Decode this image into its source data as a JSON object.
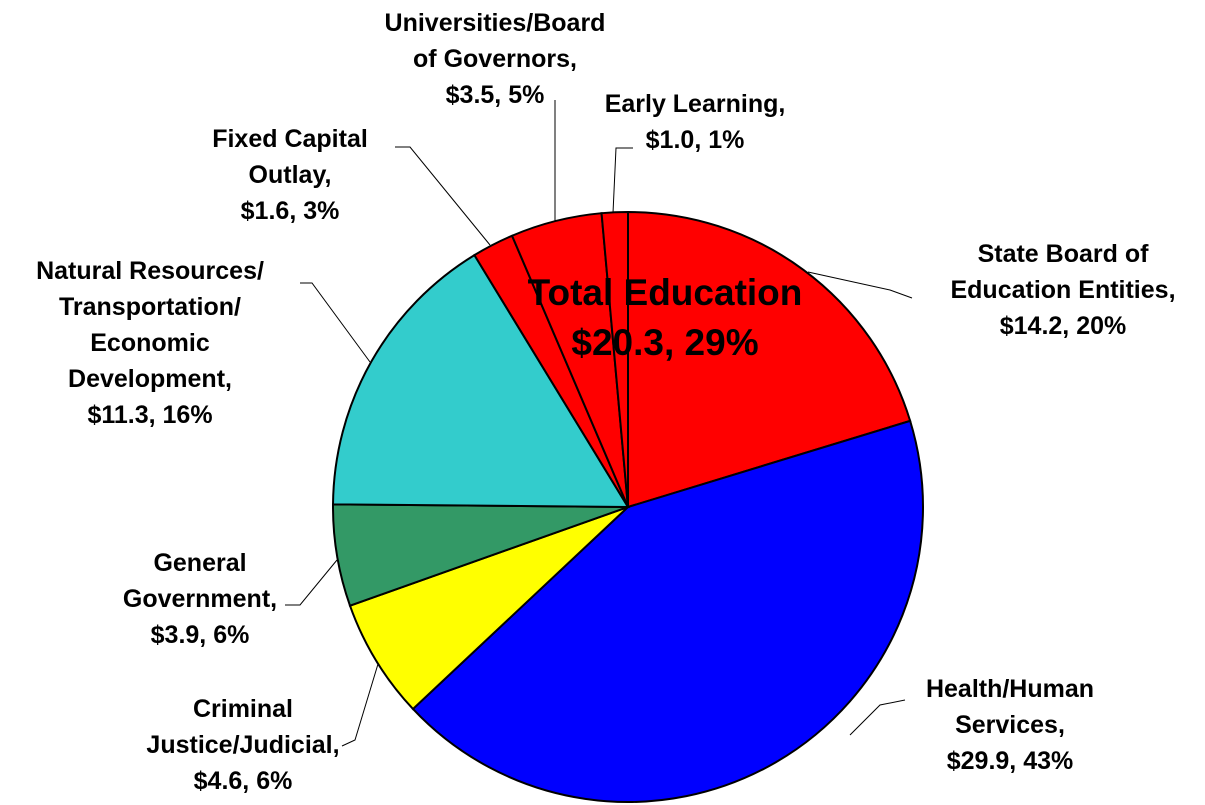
{
  "chart_data": {
    "type": "pie",
    "categories": [
      "State Board of\nEducation Entities,",
      "Health/Human\nServices,",
      "Criminal\nJustice/Judicial,",
      "General\nGovernment,",
      "Natural Resources/\nTransportation/\nEconomic\nDevelopment,",
      "Fixed Capital\nOutlay,",
      "Universities/Board\nof Governors,",
      "Early Learning,"
    ],
    "values": [
      14.2,
      29.9,
      4.6,
      3.9,
      11.3,
      1.6,
      3.5,
      1.0
    ],
    "value_labels": [
      "$14.2, 20%",
      "$29.9, 43%",
      "$4.6, 6%",
      "$3.9, 6%",
      "$11.3, 16%",
      "$1.6, 3%",
      "$3.5, 5%",
      "$1.0, 1%"
    ],
    "colors": [
      "#ff0000",
      "#0000ff",
      "#ffff00",
      "#339966",
      "#33cccc",
      "#ff0000",
      "#ff0000",
      "#ff0000"
    ],
    "annotation": "Total Education\n$20.3, 29%"
  }
}
